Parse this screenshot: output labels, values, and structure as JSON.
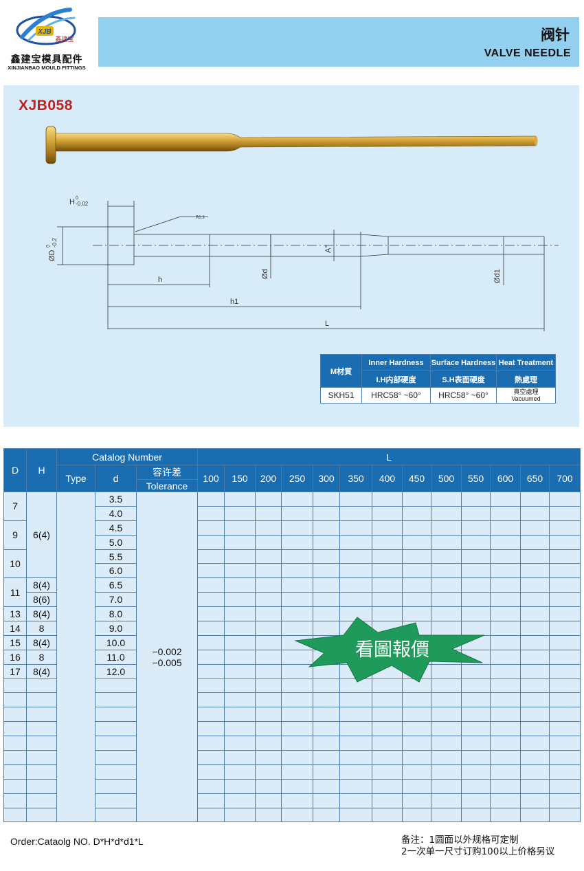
{
  "header": {
    "logo_mark": "XJB",
    "logo_small_cn": "鑫建宝",
    "company_cn": "鑫建宝模具配件",
    "company_en": "XINJIANBAO MOULD FITTINGS",
    "title_cn": "阀针",
    "title_en": "VALVE NEEDLE"
  },
  "product": {
    "code": "XJB058"
  },
  "drawing_labels": {
    "h_tol": "H",
    "h_tol_sup": "0",
    "h_tol_sub": "-0.02",
    "d_tol": "ØD",
    "d_tol_sup": "0",
    "d_tol_sub": "-0.2",
    "radius": "R0.3",
    "h": "h",
    "h1": "h1",
    "L": "L",
    "d": "Ød",
    "A": "A°",
    "d1": "Ød1"
  },
  "material_table": {
    "headers": {
      "material": "M材質",
      "inner_en": "Inner Hardness",
      "inner_cn": "I.H内部硬度",
      "surface_en": "Surface Hardness",
      "surface_cn": "S.H表面硬度",
      "heat_en": "Heat Treatment",
      "heat_cn": "熱處理"
    },
    "row": {
      "material": "SKH51",
      "inner": "HRC58° ~60°",
      "surface": "HRC58° ~60°",
      "heat_cn": "真空處理",
      "heat_en": "Vacuumed"
    }
  },
  "main_table": {
    "headers": {
      "D": "D",
      "H": "H",
      "catalog": "Catalog Number",
      "type": "Type",
      "d": "d",
      "tol_cn": "容许差",
      "tol_en": "Tolerance",
      "L": "L"
    },
    "lengths": [
      "100",
      "150",
      "200",
      "250",
      "300",
      "350",
      "400",
      "450",
      "500",
      "550",
      "600",
      "650",
      "700"
    ],
    "D_values": [
      "7",
      "9",
      "10",
      "11",
      "13",
      "14",
      "15",
      "16",
      "17"
    ],
    "H_values": [
      "6(4)",
      "8(4)",
      "8(6)",
      "8(4)",
      "8",
      "8(4)",
      "8",
      "8(4)"
    ],
    "d_values": [
      "3.5",
      "4.0",
      "4.5",
      "5.0",
      "5.5",
      "6.0",
      "6.5",
      "7.0",
      "8.0",
      "9.0",
      "10.0",
      "11.0",
      "12.0"
    ],
    "tolerance_upper": "−0.002",
    "tolerance_lower": "−0.005",
    "price_note": "看圖報價"
  },
  "footer": {
    "order": "Order:Cataolg NO.   D*H*d*d1*L",
    "remark1": "备注：1圆面以外规格可定制",
    "remark2": "2一次单一尺寸订购100以上价格另议"
  },
  "colors": {
    "header_blue": "#1a6db0",
    "panel_blue": "#d8ebf8",
    "title_bar": "#93d0f0",
    "code_red": "#c0231f",
    "star_green": "#1f9a5a",
    "pin_gold": "#c9a23b"
  }
}
